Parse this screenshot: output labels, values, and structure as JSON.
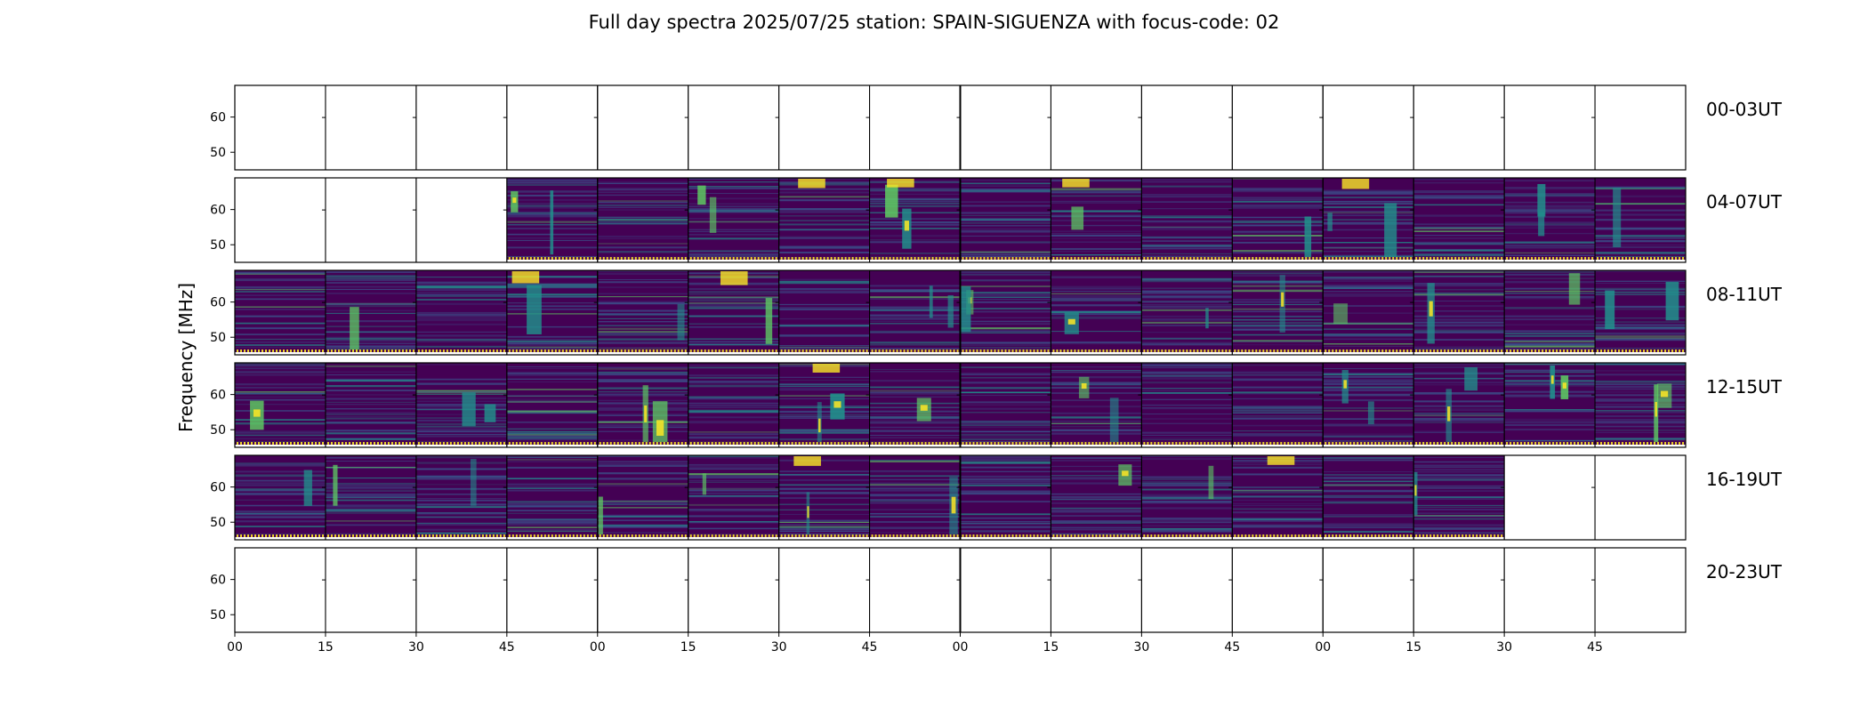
{
  "chart_data": {
    "type": "heatmap",
    "title": "Full day spectra 2025/07/25 station: SPAIN-SIGUENZA with focus-code: 02",
    "ylabel": "Frequency [MHz]",
    "xlabel": "",
    "ylim_mhz": [
      45,
      69
    ],
    "yticks": [
      "60",
      "50"
    ],
    "ytick_values": [
      60,
      50
    ],
    "xticks": [
      "00",
      "15",
      "30",
      "45",
      "00",
      "15",
      "30",
      "45",
      "00",
      "15",
      "30",
      "45",
      "00",
      "15",
      "30",
      "45"
    ],
    "colormap": [
      "#440154",
      "#3b528b",
      "#21918c",
      "#5ec962",
      "#fde725"
    ],
    "rows": [
      {
        "label": "00-03UT",
        "panels": [
          0,
          0,
          0,
          0,
          0,
          0,
          0,
          0,
          0,
          0,
          0,
          0,
          0,
          0,
          0,
          0
        ]
      },
      {
        "label": "04-07UT",
        "panels": [
          0,
          0,
          0,
          1,
          1,
          1,
          1,
          1,
          1,
          1,
          1,
          1,
          1,
          1,
          1,
          1
        ]
      },
      {
        "label": "08-11UT",
        "panels": [
          1,
          1,
          1,
          1,
          1,
          1,
          1,
          1,
          1,
          1,
          1,
          1,
          1,
          1,
          1,
          1
        ]
      },
      {
        "label": "12-15UT",
        "panels": [
          1,
          1,
          1,
          1,
          1,
          1,
          1,
          1,
          1,
          1,
          1,
          1,
          1,
          1,
          1,
          1
        ]
      },
      {
        "label": "16-19UT",
        "panels": [
          1,
          1,
          1,
          1,
          1,
          1,
          1,
          1,
          1,
          1,
          1,
          1,
          1,
          1,
          0,
          0
        ]
      },
      {
        "label": "20-23UT",
        "panels": [
          0,
          0,
          0,
          0,
          0,
          0,
          0,
          0,
          0,
          0,
          0,
          0,
          0,
          0,
          0,
          0
        ]
      }
    ],
    "notes": "Each row spans 4 hours split into 16 fifteen-minute spectra panels; 1 = spectrum data present, 0 = no data (blank)."
  }
}
